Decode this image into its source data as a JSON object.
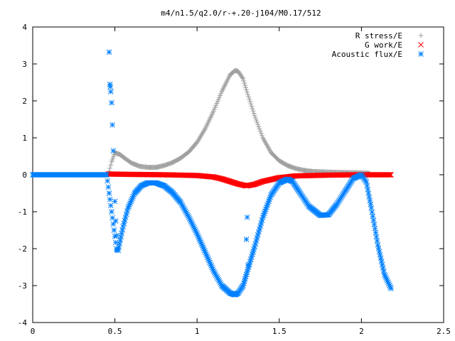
{
  "chart_data": {
    "type": "scatter",
    "title": "m4/n1.5/q2.0/r-+.20-j104/M0.17/512",
    "xlabel": "",
    "ylabel": "",
    "xlim": [
      0,
      2.5
    ],
    "ylim": [
      -4,
      4
    ],
    "xticks": [
      0,
      0.5,
      1,
      1.5,
      2,
      2.5
    ],
    "yticks": [
      -4,
      -3,
      -2,
      -1,
      0,
      1,
      2,
      3,
      4
    ],
    "xtick_labels": [
      "0",
      "0.5",
      "1",
      "1.5",
      "2",
      "2.5"
    ],
    "ytick_labels": [
      "-4",
      "-3",
      "-2",
      "-1",
      "0",
      "1",
      "2",
      "3",
      "4"
    ],
    "grid": false,
    "legend_position": "top-right",
    "legend": [
      {
        "label": "R stress/E",
        "symbol": "+",
        "color": "#a0a0a0"
      },
      {
        "label": "G work/E",
        "symbol": "×",
        "color": "#ff0000"
      },
      {
        "label": "Acoustic flux/E",
        "symbol": "*",
        "color": "#0080ff"
      }
    ],
    "series": [
      {
        "name": "R stress/E",
        "marker": "+",
        "color": "#a0a0a0",
        "x": [
          0.46,
          0.48,
          0.5,
          0.53,
          0.56,
          0.6,
          0.65,
          0.7,
          0.75,
          0.8,
          0.85,
          0.9,
          0.95,
          1.0,
          1.05,
          1.1,
          1.15,
          1.2,
          1.23,
          1.25,
          1.28,
          1.3,
          1.35,
          1.4,
          1.45,
          1.5,
          1.55,
          1.6,
          1.65,
          1.7,
          1.8,
          1.9,
          2.0,
          2.05
        ],
        "y": [
          0.0,
          0.35,
          0.6,
          0.55,
          0.45,
          0.32,
          0.23,
          0.2,
          0.2,
          0.25,
          0.33,
          0.45,
          0.62,
          0.88,
          1.25,
          1.72,
          2.25,
          2.7,
          2.82,
          2.8,
          2.6,
          2.3,
          1.6,
          1.0,
          0.6,
          0.38,
          0.25,
          0.17,
          0.12,
          0.09,
          0.07,
          0.06,
          0.05,
          0.04
        ]
      },
      {
        "name": "G work/E",
        "marker": "×",
        "color": "#ff0000",
        "x": [
          0.46,
          0.6,
          0.8,
          1.0,
          1.1,
          1.15,
          1.2,
          1.25,
          1.3,
          1.35,
          1.4,
          1.5,
          1.6,
          1.8,
          2.0,
          2.18
        ],
        "y": [
          0.02,
          0.01,
          0.0,
          -0.02,
          -0.06,
          -0.11,
          -0.18,
          -0.25,
          -0.3,
          -0.26,
          -0.18,
          -0.08,
          -0.03,
          -0.01,
          0.0,
          0.0
        ]
      },
      {
        "name": "Acoustic flux/E",
        "marker": "*",
        "color": "#0080ff",
        "x": [
          0.0,
          0.1,
          0.2,
          0.3,
          0.4,
          0.45,
          0.51,
          0.52,
          0.55,
          0.58,
          0.62,
          0.66,
          0.7,
          0.75,
          0.8,
          0.85,
          0.9,
          0.95,
          1.0,
          1.05,
          1.1,
          1.15,
          1.2,
          1.23,
          1.25,
          1.28,
          1.3,
          1.35,
          1.4,
          1.45,
          1.5,
          1.55,
          1.58,
          1.62,
          1.68,
          1.75,
          1.8,
          1.85,
          1.9,
          1.95,
          2.0,
          2.03,
          2.06,
          2.1,
          2.14,
          2.18
        ],
        "y": [
          0.0,
          0.0,
          0.0,
          0.0,
          0.0,
          0.0,
          -2.0,
          -2.05,
          -1.4,
          -0.9,
          -0.5,
          -0.3,
          -0.22,
          -0.22,
          -0.3,
          -0.48,
          -0.75,
          -1.15,
          -1.6,
          -2.1,
          -2.6,
          -3.0,
          -3.2,
          -3.25,
          -3.2,
          -3.0,
          -2.7,
          -1.95,
          -1.15,
          -0.55,
          -0.22,
          -0.12,
          -0.18,
          -0.45,
          -0.85,
          -1.1,
          -1.08,
          -0.8,
          -0.45,
          -0.1,
          0.0,
          -0.2,
          -0.9,
          -1.9,
          -2.7,
          -3.08
        ]
      },
      {
        "name": "Acoustic flux/E (scattered points)",
        "marker": "*",
        "color": "#0080ff",
        "x": [
          0.465,
          0.47,
          0.472,
          0.475,
          0.48,
          0.485,
          0.49,
          0.5,
          0.505,
          0.51,
          1.3,
          1.305,
          1.31
        ],
        "y": [
          3.32,
          2.45,
          2.38,
          2.25,
          1.95,
          1.35,
          0.65,
          -0.72,
          -1.25,
          -1.65,
          -1.75,
          -1.15,
          -2.45
        ]
      }
    ]
  }
}
